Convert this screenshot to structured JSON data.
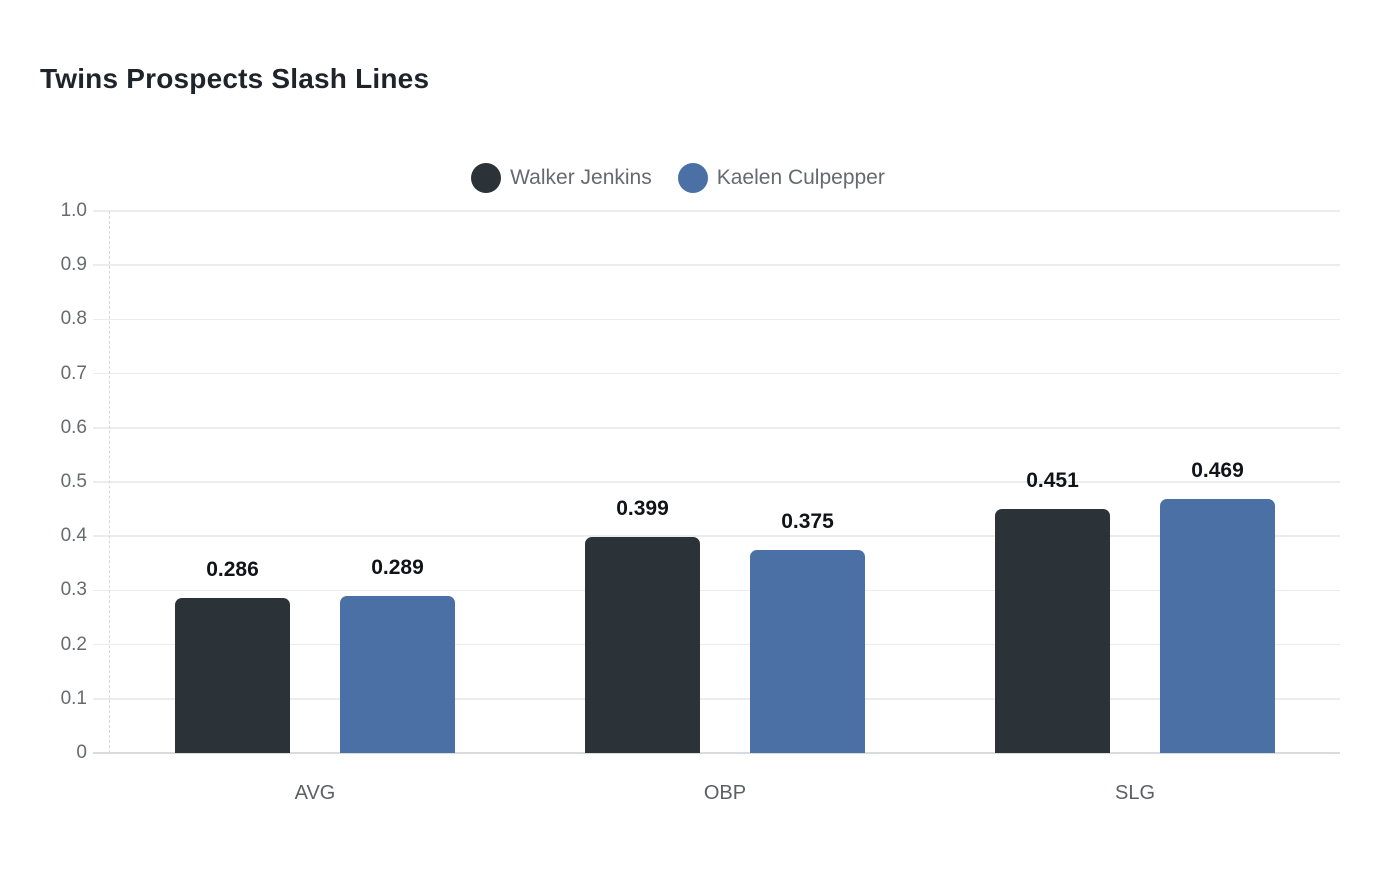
{
  "page": {
    "background": "#ffffff"
  },
  "header": {
    "title": "Twins Prospects Slash Lines"
  },
  "chart_data": {
    "type": "bar",
    "title": "Twins Prospects Slash Lines",
    "categories": [
      "AVG",
      "OBP",
      "SLG"
    ],
    "series": [
      {
        "name": "Walker Jenkins",
        "color": "#2b3238",
        "values": [
          0.286,
          0.399,
          0.451
        ],
        "labels": [
          "0.286",
          "0.399",
          "0.451"
        ]
      },
      {
        "name": "Kaelen Culpepper",
        "color": "#4b70a6",
        "values": [
          0.289,
          0.375,
          0.469
        ],
        "labels": [
          "0.289",
          "0.375",
          "0.469"
        ]
      }
    ],
    "ylim": [
      0,
      1.0
    ],
    "yticks": [
      {
        "value": 0.0,
        "label": "0"
      },
      {
        "value": 0.1,
        "label": "0.1"
      },
      {
        "value": 0.2,
        "label": "0.2"
      },
      {
        "value": 0.3,
        "label": "0.3"
      },
      {
        "value": 0.4,
        "label": "0.4"
      },
      {
        "value": 0.5,
        "label": "0.5"
      },
      {
        "value": 0.6,
        "label": "0.6"
      },
      {
        "value": 0.7,
        "label": "0.7"
      },
      {
        "value": 0.8,
        "label": "0.8"
      },
      {
        "value": 0.9,
        "label": "0.9"
      },
      {
        "value": 1.0,
        "label": "1.0"
      }
    ],
    "grid": true,
    "legend_position": "top-center",
    "xlabel": "",
    "ylabel": "",
    "colors": {
      "grid_line": "#ececec",
      "baseline": "#d9dbdd",
      "axis_dash": "#d8d8d8",
      "tick_text": "#666b70",
      "value_text": "#101418",
      "legend_text": "#646a70",
      "title_text": "#1f242a"
    }
  }
}
